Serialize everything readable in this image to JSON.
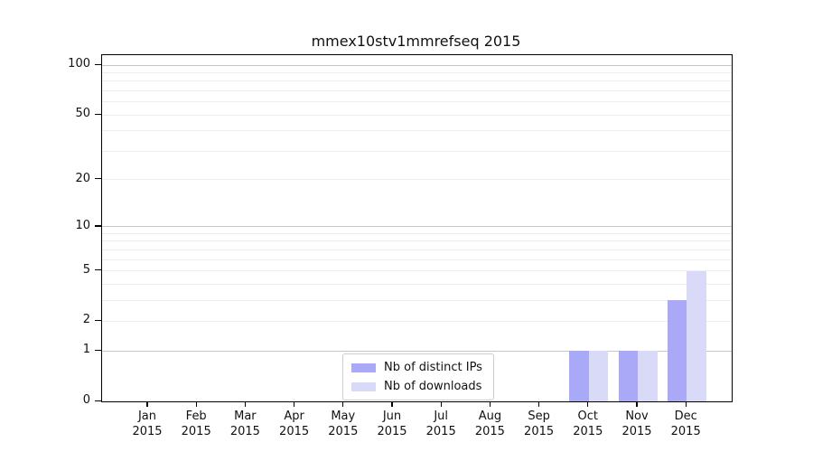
{
  "chart_data": {
    "type": "bar",
    "title": "mmex10stv1mmrefseq 2015",
    "categories": [
      "Jan",
      "Feb",
      "Mar",
      "Apr",
      "May",
      "Jun",
      "Jul",
      "Aug",
      "Sep",
      "Oct",
      "Nov",
      "Dec"
    ],
    "year_label": "2015",
    "series": [
      {
        "name": "Nb of distinct IPs",
        "color": "#a9a9f7",
        "values": [
          0,
          0,
          0,
          0,
          0,
          0,
          0,
          0,
          0,
          1,
          1,
          3
        ]
      },
      {
        "name": "Nb of downloads",
        "color": "#d9d9f8",
        "values": [
          0,
          0,
          0,
          0,
          0,
          0,
          0,
          0,
          0,
          1,
          1,
          5
        ]
      }
    ],
    "yscale": "log1p",
    "ylim": [
      0,
      115
    ],
    "yticks": [
      0,
      1,
      2,
      5,
      10,
      20,
      50,
      100
    ],
    "major_gridlines": [
      1,
      10,
      100
    ],
    "minor_gridlines": [
      2,
      3,
      4,
      5,
      6,
      7,
      8,
      9,
      20,
      30,
      40,
      50,
      60,
      70,
      80,
      90
    ],
    "grid": true,
    "legend_position": "lower center",
    "colors": {
      "major_grid": "#c6c6c6",
      "minor_grid": "#ededed",
      "axis": "#000000",
      "background": "#ffffff",
      "legend_border": "#cccccc"
    }
  }
}
